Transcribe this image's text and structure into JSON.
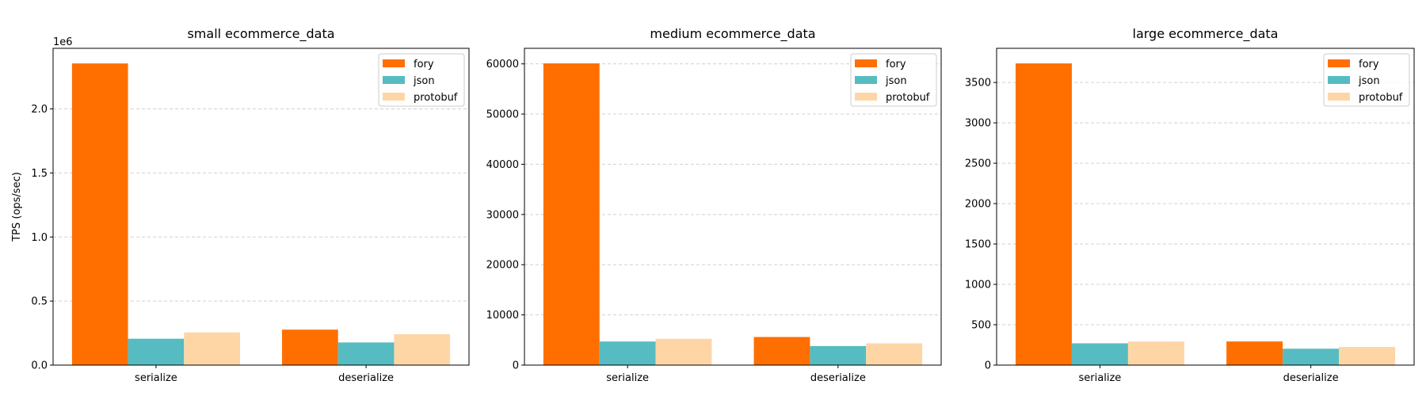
{
  "chart_data": [
    {
      "type": "bar",
      "title": "small ecommerce_data",
      "ylabel": "TPS (ops/sec)",
      "offset_text": "1e6",
      "categories": [
        "serialize",
        "deserialize"
      ],
      "ylim": [
        0,
        2473000
      ],
      "yticks": [
        0,
        500000,
        1000000,
        1500000,
        2000000
      ],
      "ytick_labels": [
        "0.0",
        "0.5",
        "1.0",
        "1.5",
        "2.0"
      ],
      "series": [
        {
          "name": "fory",
          "values": [
            2355000,
            277000
          ]
        },
        {
          "name": "json",
          "values": [
            206000,
            177000
          ]
        },
        {
          "name": "protobuf",
          "values": [
            255000,
            241000
          ]
        }
      ],
      "grid": "y-dashed",
      "legend": "top-right"
    },
    {
      "type": "bar",
      "title": "medium ecommerce_data",
      "ylabel": "",
      "categories": [
        "serialize",
        "deserialize"
      ],
      "ylim": [
        0,
        63100
      ],
      "yticks": [
        0,
        10000,
        20000,
        30000,
        40000,
        50000,
        60000
      ],
      "ytick_labels": [
        "0",
        "10000",
        "20000",
        "30000",
        "40000",
        "50000",
        "60000"
      ],
      "series": [
        {
          "name": "fory",
          "values": [
            60100,
            5600
          ]
        },
        {
          "name": "json",
          "values": [
            4700,
            3800
          ]
        },
        {
          "name": "protobuf",
          "values": [
            5240,
            4340
          ]
        }
      ],
      "grid": "y-dashed",
      "legend": "top-right"
    },
    {
      "type": "bar",
      "title": "large ecommerce_data",
      "ylabel": "",
      "categories": [
        "serialize",
        "deserialize"
      ],
      "ylim": [
        0,
        3923
      ],
      "yticks": [
        0,
        500,
        1000,
        1500,
        2000,
        2500,
        3000,
        3500
      ],
      "ytick_labels": [
        "0",
        "500",
        "1000",
        "1500",
        "2000",
        "2500",
        "3000",
        "3500"
      ],
      "series": [
        {
          "name": "fory",
          "values": [
            3736,
            293
          ]
        },
        {
          "name": "json",
          "values": [
            270,
            203
          ]
        },
        {
          "name": "protobuf",
          "values": [
            293,
            225
          ]
        }
      ],
      "grid": "y-dashed",
      "legend": "top-right"
    }
  ],
  "colors": {
    "fory": "#ff6f00",
    "json": "#56bcc2",
    "protobuf": "#fed6a6"
  }
}
